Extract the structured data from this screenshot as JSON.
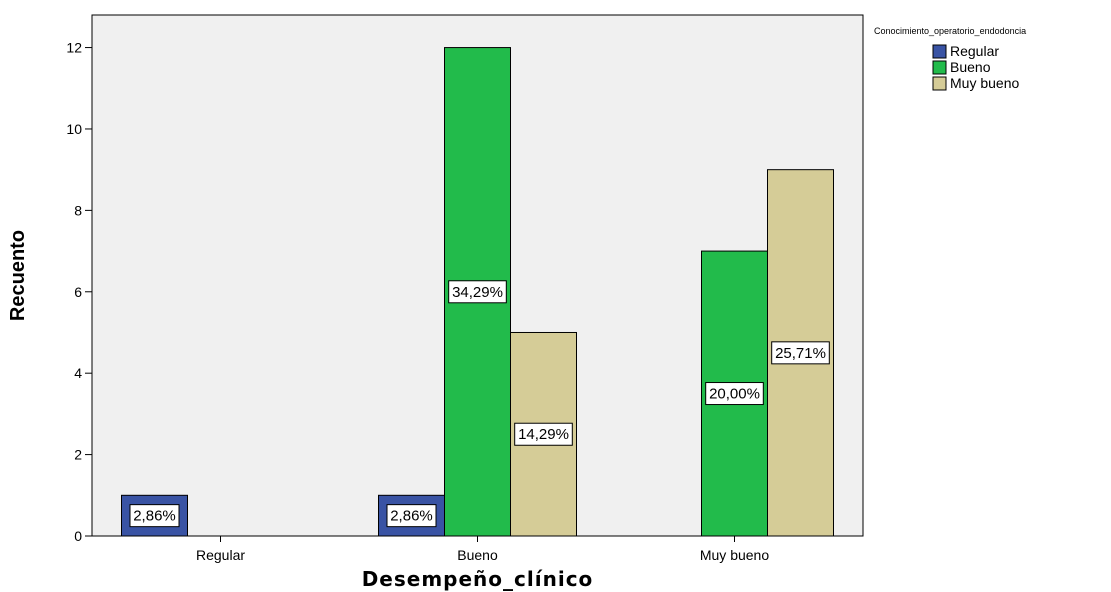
{
  "chart_data": {
    "type": "bar",
    "title": "",
    "xlabel": "Desempeño_clínico",
    "ylabel": "Recuento",
    "categories": [
      "Regular",
      "Bueno",
      "Muy bueno"
    ],
    "ylim": [
      0,
      12.8
    ],
    "yticks": [
      0,
      2,
      4,
      6,
      8,
      10,
      12
    ],
    "grid": false,
    "legend_title": "Conocimiento_operatorio_endodoncia",
    "legend_position": "top-right",
    "series": [
      {
        "name": "Regular",
        "color": "#3953a4",
        "values": [
          1,
          1,
          0
        ],
        "labels": [
          "2,86%",
          "2,86%",
          ""
        ]
      },
      {
        "name": "Bueno",
        "color": "#22bb4b",
        "values": [
          0,
          12,
          7
        ],
        "labels": [
          "",
          "34,29%",
          "20,00%"
        ]
      },
      {
        "name": "Muy bueno",
        "color": "#d5cc97",
        "values": [
          0,
          5,
          9
        ],
        "labels": [
          "",
          "14,29%",
          "25,71%"
        ]
      }
    ]
  }
}
